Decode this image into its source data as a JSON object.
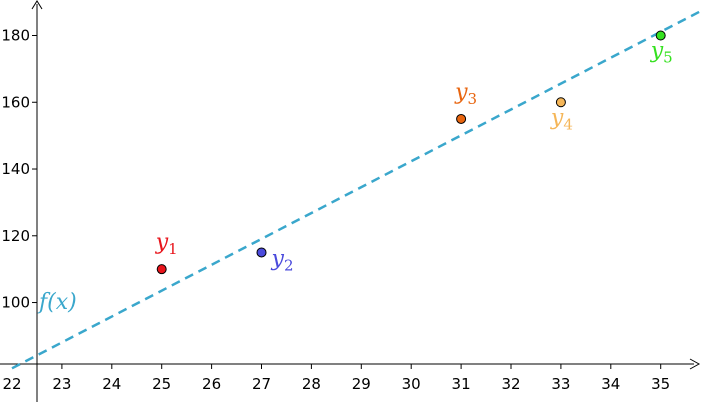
{
  "chart_data": {
    "type": "scatter",
    "title": "",
    "xlabel": "",
    "ylabel": "",
    "xlim": [
      22,
      36.2
    ],
    "ylim": [
      78,
      190
    ],
    "x_ticks": [
      22,
      23,
      24,
      25,
      26,
      27,
      28,
      29,
      30,
      31,
      32,
      33,
      34,
      35
    ],
    "y_ticks": [
      100,
      120,
      140,
      160,
      180
    ],
    "grid": false,
    "points": [
      {
        "name": "y",
        "sub": "1",
        "x": 25,
        "y": 110,
        "color": "#e8141b",
        "label_pos": "above"
      },
      {
        "name": "y",
        "sub": "2",
        "x": 27,
        "y": 115,
        "color": "#4b4bdc",
        "label_pos": "right"
      },
      {
        "name": "y",
        "sub": "3",
        "x": 31,
        "y": 155,
        "color": "#e8650f",
        "label_pos": "above"
      },
      {
        "name": "y",
        "sub": "4",
        "x": 33,
        "y": 160,
        "color": "#f5b658",
        "label_pos": "below"
      },
      {
        "name": "y",
        "sub": "5",
        "x": 35,
        "y": 180,
        "color": "#35e11f",
        "label_pos": "below"
      }
    ],
    "line": {
      "label": "f(x)",
      "style": "dashed",
      "color": "#3aa7cc",
      "x": [
        22,
        36.2
      ],
      "y": [
        80.3,
        190.4
      ]
    }
  }
}
